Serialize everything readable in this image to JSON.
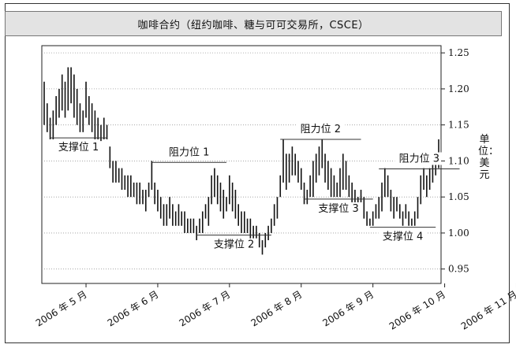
{
  "title": "咖啡合约（纽约咖啡、糖与可可交易所，CSCE）",
  "unit_label": "单位：美元",
  "chart_data": {
    "type": "bar",
    "subtype": "ohlc",
    "title": "咖啡合约（纽约咖啡、糖与可可交易所，CSCE）",
    "ylabel": "单位：美元",
    "ylim": [
      0.93,
      1.26
    ],
    "yticks": [
      "1.25",
      "1.20",
      "1.15",
      "1.10",
      "1.05",
      "1.00",
      "0.95"
    ],
    "ytick_values": [
      1.25,
      1.2,
      1.15,
      1.1,
      1.05,
      1.0,
      0.95
    ],
    "xticks": [
      "2006 年 5 月",
      "2006 年 6 月",
      "2006 年 7 月",
      "2006 年 8 月",
      "2006 年 9 月",
      "2006 年 10 月",
      "2006 年 11 月"
    ],
    "xtick_index": [
      14,
      38,
      62,
      86,
      110,
      134,
      158
    ],
    "grid": "horizontal dotted",
    "bars": [
      [
        1.21,
        1.15
      ],
      [
        1.18,
        1.14
      ],
      [
        1.16,
        1.13
      ],
      [
        1.17,
        1.13
      ],
      [
        1.19,
        1.15
      ],
      [
        1.2,
        1.16
      ],
      [
        1.22,
        1.17
      ],
      [
        1.21,
        1.16
      ],
      [
        1.23,
        1.17
      ],
      [
        1.23,
        1.18
      ],
      [
        1.22,
        1.16
      ],
      [
        1.2,
        1.15
      ],
      [
        1.18,
        1.14
      ],
      [
        1.17,
        1.14
      ],
      [
        1.21,
        1.16
      ],
      [
        1.19,
        1.15
      ],
      [
        1.18,
        1.14
      ],
      [
        1.17,
        1.13
      ],
      [
        1.16,
        1.13
      ],
      [
        1.15,
        1.12
      ],
      [
        1.16,
        1.13
      ],
      [
        1.15,
        1.13
      ],
      [
        1.12,
        1.09
      ],
      [
        1.1,
        1.07
      ],
      [
        1.1,
        1.07
      ],
      [
        1.09,
        1.07
      ],
      [
        1.09,
        1.06
      ],
      [
        1.08,
        1.06
      ],
      [
        1.08,
        1.05
      ],
      [
        1.08,
        1.05
      ],
      [
        1.07,
        1.05
      ],
      [
        1.07,
        1.04
      ],
      [
        1.07,
        1.04
      ],
      [
        1.06,
        1.04
      ],
      [
        1.06,
        1.03
      ],
      [
        1.07,
        1.05
      ],
      [
        1.1,
        1.06
      ],
      [
        1.07,
        1.04
      ],
      [
        1.06,
        1.03
      ],
      [
        1.05,
        1.02
      ],
      [
        1.04,
        1.01
      ],
      [
        1.04,
        1.01
      ],
      [
        1.05,
        1.02
      ],
      [
        1.04,
        1.01
      ],
      [
        1.03,
        1.01
      ],
      [
        1.04,
        1.01
      ],
      [
        1.03,
        1.01
      ],
      [
        1.03,
        1.0
      ],
      [
        1.02,
        1.0
      ],
      [
        1.02,
        1.0
      ],
      [
        1.02,
        1.0
      ],
      [
        1.01,
        0.99
      ],
      [
        1.02,
        1.0
      ],
      [
        1.03,
        1.0
      ],
      [
        1.04,
        1.02
      ],
      [
        1.05,
        1.01
      ],
      [
        1.08,
        1.04
      ],
      [
        1.09,
        1.05
      ],
      [
        1.08,
        1.04
      ],
      [
        1.07,
        1.03
      ],
      [
        1.06,
        1.02
      ],
      [
        1.05,
        1.03
      ],
      [
        1.08,
        1.04
      ],
      [
        1.07,
        1.03
      ],
      [
        1.06,
        1.02
      ],
      [
        1.04,
        1.01
      ],
      [
        1.03,
        1.0
      ],
      [
        1.03,
        1.0
      ],
      [
        1.02,
        1.0
      ],
      [
        1.02,
        0.99
      ],
      [
        1.01,
        0.99
      ],
      [
        1.01,
        0.99
      ],
      [
        1.0,
        0.98
      ],
      [
        0.99,
        0.97
      ],
      [
        1.0,
        0.98
      ],
      [
        1.01,
        0.99
      ],
      [
        1.02,
        1.0
      ],
      [
        1.04,
        1.01
      ],
      [
        1.05,
        1.02
      ],
      [
        1.08,
        1.05
      ],
      [
        1.13,
        1.07
      ],
      [
        1.11,
        1.06
      ],
      [
        1.11,
        1.07
      ],
      [
        1.12,
        1.08
      ],
      [
        1.11,
        1.08
      ],
      [
        1.1,
        1.07
      ],
      [
        1.09,
        1.06
      ],
      [
        1.07,
        1.04
      ],
      [
        1.06,
        1.04
      ],
      [
        1.08,
        1.05
      ],
      [
        1.1,
        1.05
      ],
      [
        1.11,
        1.07
      ],
      [
        1.12,
        1.08
      ],
      [
        1.13,
        1.09
      ],
      [
        1.11,
        1.07
      ],
      [
        1.1,
        1.06
      ],
      [
        1.09,
        1.05
      ],
      [
        1.08,
        1.05
      ],
      [
        1.07,
        1.05
      ],
      [
        1.09,
        1.05
      ],
      [
        1.11,
        1.06
      ],
      [
        1.1,
        1.06
      ],
      [
        1.08,
        1.05
      ],
      [
        1.07,
        1.04
      ],
      [
        1.06,
        1.04
      ],
      [
        1.05,
        1.03
      ],
      [
        1.06,
        1.03
      ],
      [
        1.05,
        1.02
      ],
      [
        1.03,
        1.01
      ],
      [
        1.02,
        1.01
      ],
      [
        1.03,
        1.01
      ],
      [
        1.04,
        1.02
      ],
      [
        1.05,
        1.02
      ],
      [
        1.07,
        1.03
      ],
      [
        1.09,
        1.05
      ],
      [
        1.08,
        1.05
      ],
      [
        1.06,
        1.03
      ],
      [
        1.05,
        1.02
      ],
      [
        1.05,
        1.03
      ],
      [
        1.04,
        1.02
      ],
      [
        1.03,
        1.01
      ],
      [
        1.04,
        1.02
      ],
      [
        1.03,
        1.01
      ],
      [
        1.02,
        1.01
      ],
      [
        1.03,
        1.01
      ],
      [
        1.05,
        1.02
      ],
      [
        1.08,
        1.04
      ],
      [
        1.09,
        1.06
      ],
      [
        1.08,
        1.05
      ],
      [
        1.09,
        1.06
      ],
      [
        1.1,
        1.07
      ],
      [
        1.11,
        1.08
      ],
      [
        1.13,
        1.09
      ]
    ],
    "annotations": [
      {
        "label": "支撑位 1",
        "level": 1.132,
        "from": 2,
        "to": 21
      },
      {
        "label": "阻力位 1",
        "level": 1.098,
        "from": 36,
        "to": 61
      },
      {
        "label": "支撑位 2",
        "level": 0.997,
        "from": 51,
        "to": 76
      },
      {
        "label": "阻力位 2",
        "level": 1.13,
        "from": 79,
        "to": 106
      },
      {
        "label": "支撑位 3",
        "level": 1.047,
        "from": 87,
        "to": 110
      },
      {
        "label": "阻力位 3",
        "level": 1.089,
        "from": 112,
        "to": 139
      },
      {
        "label": "支撑位 4",
        "level": 1.008,
        "from": 109,
        "to": 131
      }
    ]
  }
}
